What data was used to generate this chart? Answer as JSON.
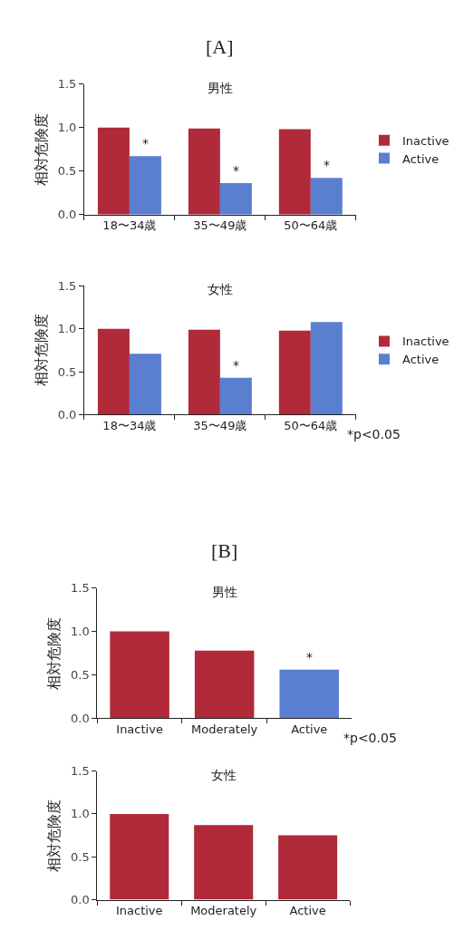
{
  "chart_data": [
    {
      "type": "bar",
      "title": "[A]",
      "subtitle": "男性",
      "ylabel": "相対危険度",
      "categories": [
        "18〜34歳",
        "35〜49歳",
        "50〜64歳"
      ],
      "series": [
        {
          "name": "Inactive",
          "color": "#b02a3a",
          "values": [
            1.0,
            0.99,
            0.98
          ]
        },
        {
          "name": "Active",
          "color": "#5a7fd0",
          "values": [
            0.67,
            0.36,
            0.42
          ]
        }
      ],
      "ylim": [
        0,
        1.5
      ],
      "yticks": [
        {
          "value": 0,
          "label": "0.0"
        },
        {
          "value": 0.5,
          "label": "0.5"
        },
        {
          "value": 1,
          "label": "1.0"
        },
        {
          "value": 1.5,
          "label": "1.5"
        }
      ],
      "legend": "right",
      "annotations": [
        {
          "text": "*",
          "x": "18〜34歳",
          "y": 0.67
        },
        {
          "text": "*",
          "x": "35〜49歳",
          "y": 0.36
        },
        {
          "text": "*",
          "x": "50〜64歳",
          "y": 0.42
        }
      ]
    },
    {
      "type": "bar",
      "title": "女性",
      "ylabel": "相対危険度",
      "categories": [
        "18〜34歳",
        "35〜49歳",
        "50〜64歳"
      ],
      "series": [
        {
          "name": "Inactive",
          "color": "#b02a3a",
          "values": [
            1.0,
            0.99,
            0.98
          ]
        },
        {
          "name": "Active",
          "color": "#5a7fd0",
          "values": [
            0.71,
            0.43,
            1.08
          ]
        }
      ],
      "ylim": [
        0,
        1.5
      ],
      "yticks": [
        {
          "value": 0,
          "label": "0.0"
        },
        {
          "value": 0.5,
          "label": "0.5"
        },
        {
          "value": 1,
          "label": "1.0"
        },
        {
          "value": 1.5,
          "label": "1.5"
        }
      ],
      "legend": "right",
      "annotations": [
        {
          "text": "*",
          "x": "35〜49歳",
          "y": 0.43
        },
        "*p<0.05"
      ]
    },
    {
      "type": "bar",
      "title": "[B]",
      "subtitle": "男性",
      "ylabel": "相対危険度",
      "categories": [
        "Inactive",
        "Moderately",
        "Active"
      ],
      "values": [
        1.0,
        0.78,
        0.56
      ],
      "colors": [
        "#b02a3a",
        "#b02a3a",
        "#5a7fd0"
      ],
      "ylim": [
        0,
        1.5
      ],
      "yticks": [
        {
          "value": 0,
          "label": "0.0"
        },
        {
          "value": 0.5,
          "label": "0.5"
        },
        {
          "value": 1,
          "label": "1.0"
        },
        {
          "value": 1.5,
          "label": "1.5"
        }
      ],
      "annotations": [
        {
          "text": "*",
          "x": "Active",
          "y": 0.56
        },
        "*p<0.05"
      ]
    },
    {
      "type": "bar",
      "title": "女性",
      "ylabel": "相対危険度",
      "categories": [
        "Inactive",
        "Moderately",
        "Active"
      ],
      "values": [
        1.0,
        0.87,
        0.75
      ],
      "colors": [
        "#b02a3a",
        "#b02a3a",
        "#b02a3a"
      ],
      "ylim": [
        0,
        1.5
      ],
      "yticks": [
        {
          "value": 0,
          "label": "0.0"
        },
        {
          "value": 0.5,
          "label": "0.5"
        },
        {
          "value": 1,
          "label": "1.0"
        },
        {
          "value": 1.5,
          "label": "1.5"
        }
      ]
    }
  ]
}
